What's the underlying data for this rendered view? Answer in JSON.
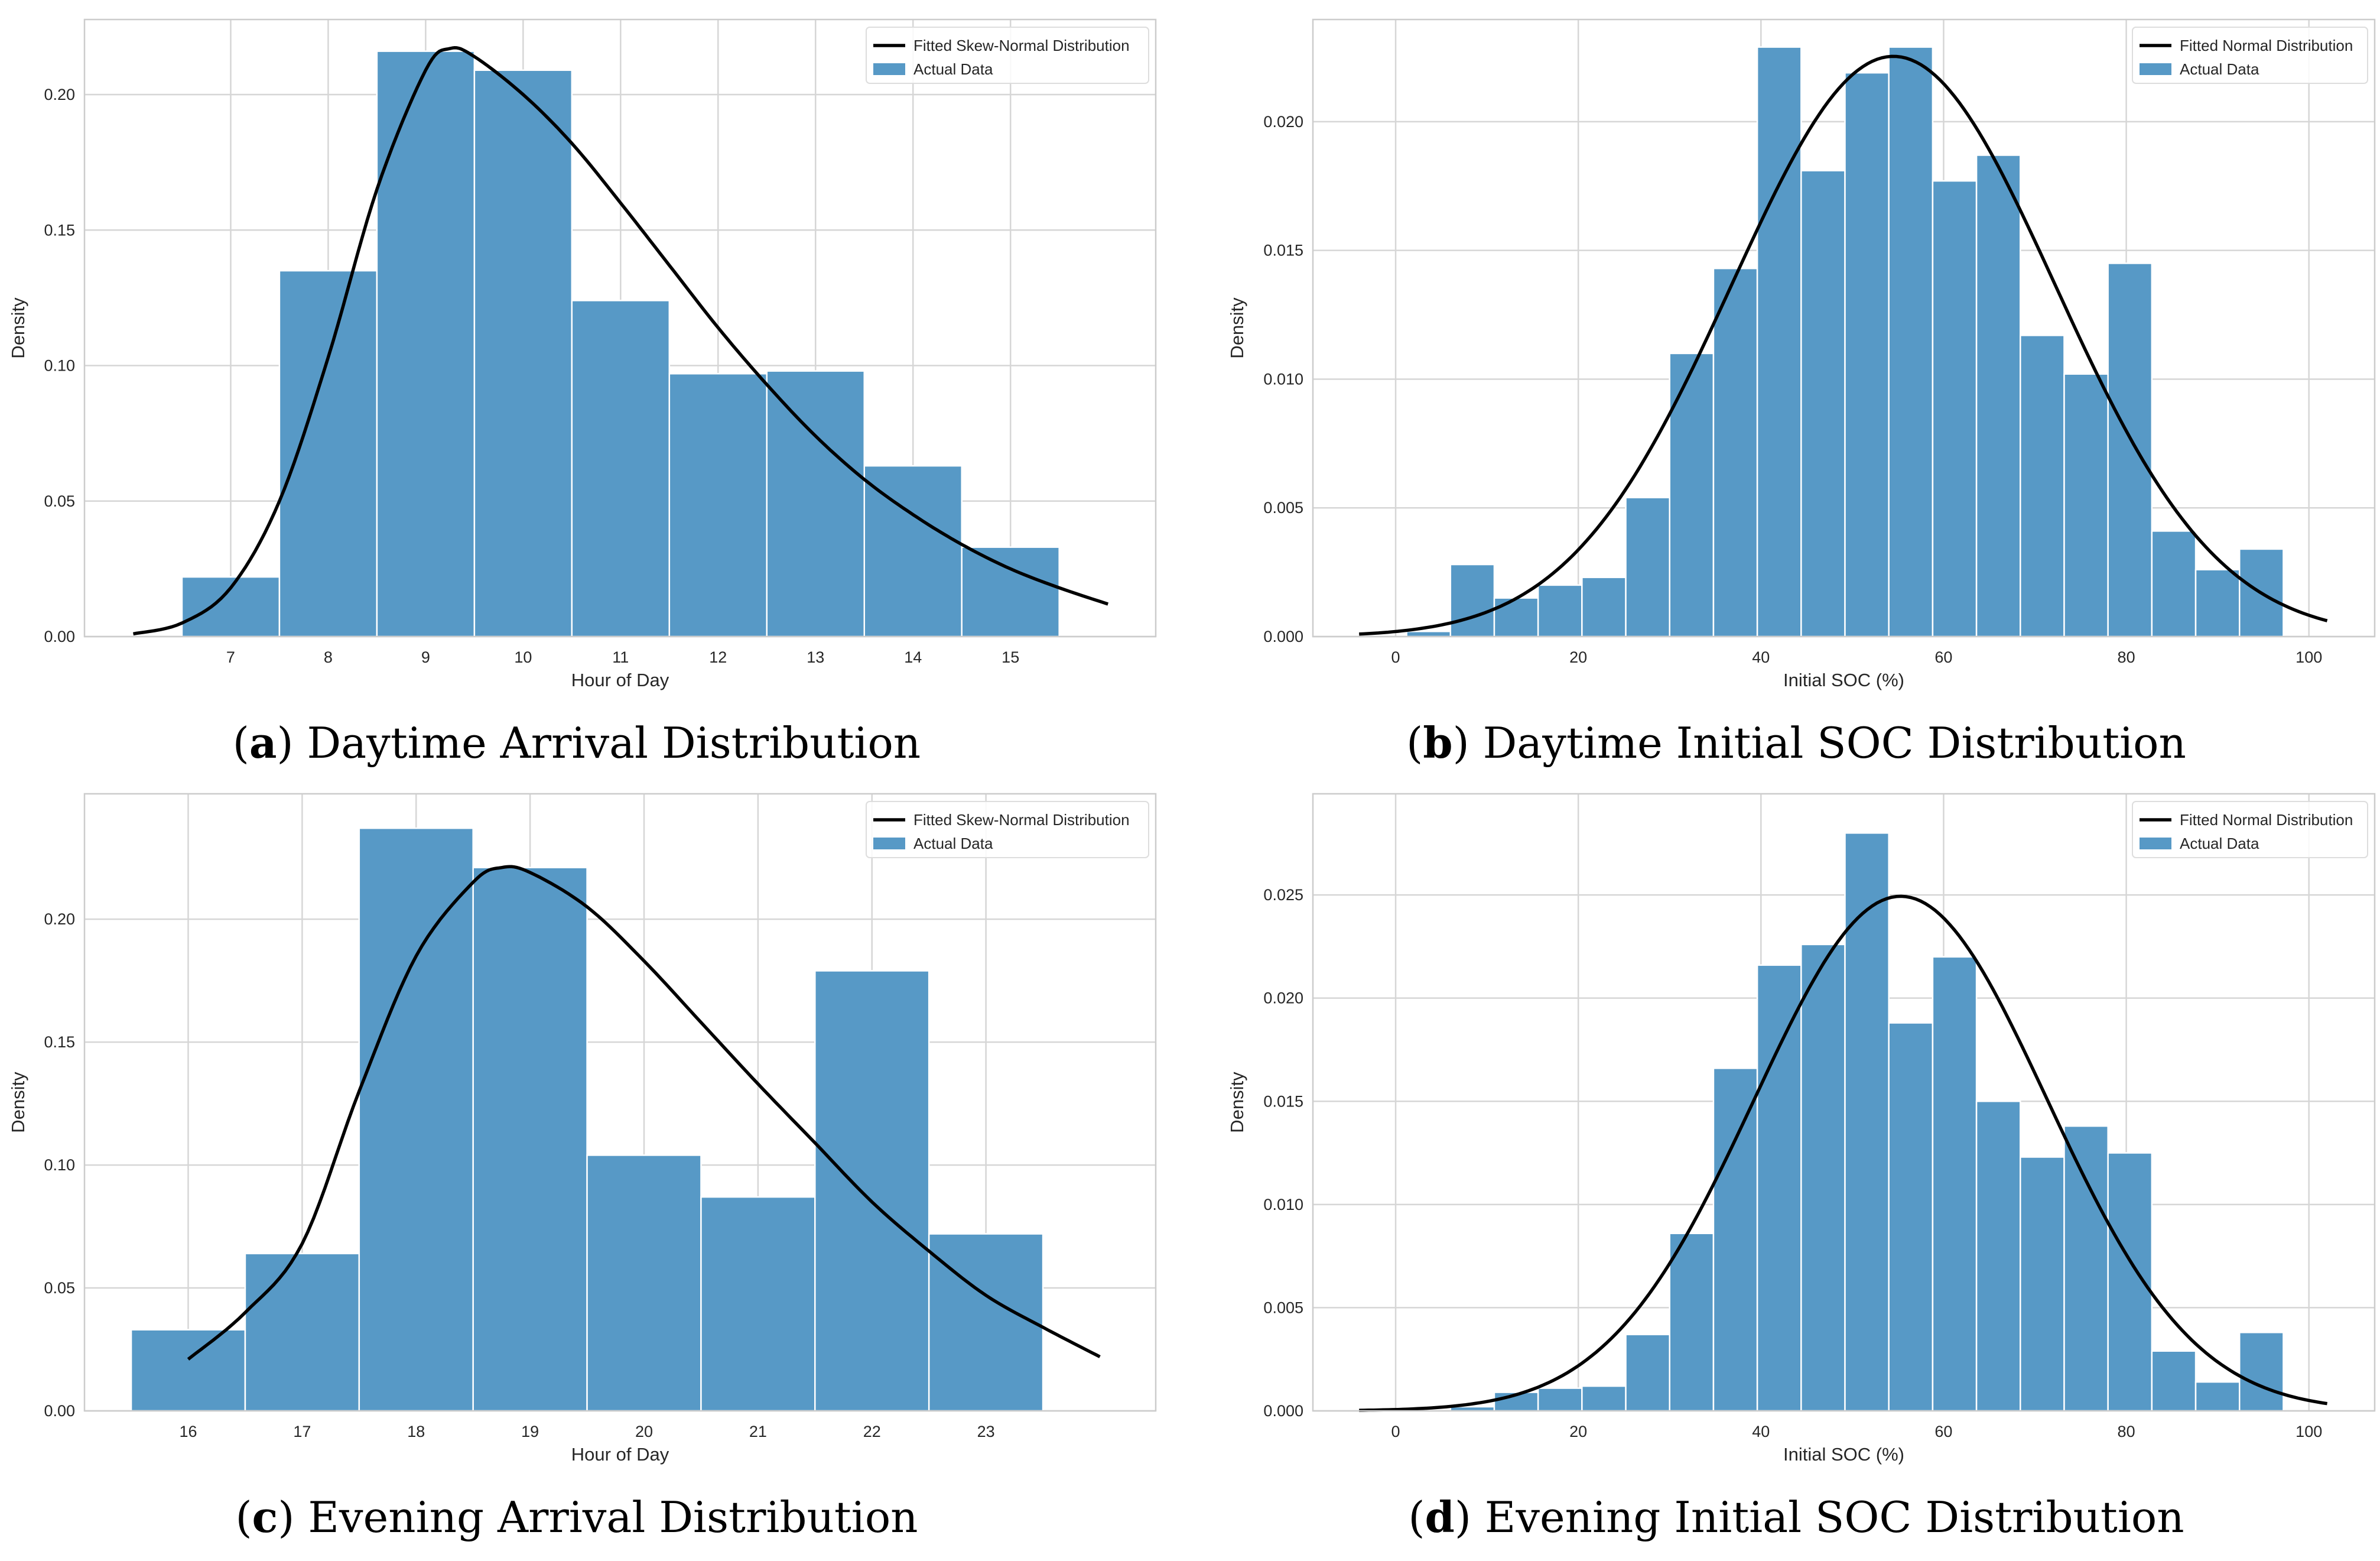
{
  "colors": {
    "bar": "#5799c6",
    "curve": "#000000",
    "grid": "#d6d6d6",
    "spine": "#cccccc"
  },
  "chart_data": [
    {
      "id": "a",
      "type": "bar",
      "caption_letter": "a",
      "caption_text": " Daytime Arrival Distribution",
      "xlabel": "Hour of Day",
      "ylabel": "Density",
      "xlim": [
        5.5,
        16.49
      ],
      "ylim": [
        0,
        0.2277
      ],
      "xticks": [
        7,
        8,
        9,
        10,
        11,
        12,
        13,
        14,
        15
      ],
      "yticks": [
        0.0,
        0.05,
        0.1,
        0.15,
        0.2
      ],
      "ytick_decimals": 2,
      "bins": {
        "start": 6.5,
        "width": 1
      },
      "values": [
        0.022,
        0.135,
        0.216,
        0.209,
        0.124,
        0.097,
        0.098,
        0.063,
        0.033
      ],
      "curve": {
        "name": "Fitted Skew-Normal Distribution",
        "kind": "points",
        "x": [
          6,
          6.5,
          7,
          7.5,
          8,
          8.5,
          9,
          9.25,
          9.5,
          10,
          10.5,
          11,
          11.5,
          12,
          12.5,
          13,
          13.5,
          14,
          14.5,
          15,
          15.5,
          16
        ],
        "y": [
          0.001,
          0.005,
          0.018,
          0.05,
          0.103,
          0.165,
          0.209,
          0.217,
          0.214,
          0.2,
          0.182,
          0.16,
          0.137,
          0.114,
          0.093,
          0.074,
          0.058,
          0.045,
          0.034,
          0.025,
          0.018,
          0.012
        ]
      },
      "legend": {
        "line": "Fitted Skew-Normal Distribution",
        "bar": "Actual Data",
        "position": "top-right"
      }
    },
    {
      "id": "b",
      "type": "bar",
      "caption_letter": "b",
      "caption_text": " Daytime Initial SOC Distribution",
      "xlabel": "Initial SOC (%)",
      "ylabel": "Density",
      "xlim": [
        -9.06,
        107.2
      ],
      "ylim": [
        0,
        0.02397
      ],
      "xticks": [
        0,
        20,
        40,
        60,
        80,
        100
      ],
      "yticks": [
        0.0,
        0.005,
        0.01,
        0.015,
        0.02
      ],
      "ytick_decimals": 3,
      "bins": {
        "start": 1.2,
        "width": 4.8
      },
      "values": [
        0.0002,
        0.0028,
        0.0015,
        0.002,
        0.0023,
        0.0054,
        0.011,
        0.0143,
        0.0229,
        0.0181,
        0.0219,
        0.0229,
        0.0177,
        0.0187,
        0.0117,
        0.0102,
        0.0145,
        0.0041,
        0.0026,
        0.0034
      ],
      "curve": {
        "name": "Fitted Normal Distribution",
        "kind": "normal",
        "mean": 54.5,
        "std": 17.7,
        "range": [
          -4,
          102
        ]
      },
      "legend": {
        "line": "Fitted Normal Distribution",
        "bar": "Actual Data",
        "position": "top-right"
      }
    },
    {
      "id": "c",
      "type": "bar",
      "caption_letter": "c",
      "caption_text": " Evening Arrival Distribution",
      "xlabel": "Hour of Day",
      "ylabel": "Density",
      "xlim": [
        15.09,
        24.49
      ],
      "ylim": [
        0,
        0.251
      ],
      "xticks": [
        16,
        17,
        18,
        19,
        20,
        21,
        22,
        23
      ],
      "yticks": [
        0.0,
        0.05,
        0.1,
        0.15,
        0.2
      ],
      "ytick_decimals": 2,
      "bins": {
        "start": 15.5,
        "width": 1
      },
      "values": [
        0.033,
        0.064,
        0.237,
        0.221,
        0.104,
        0.087,
        0.179,
        0.072
      ],
      "curve": {
        "name": "Fitted Skew-Normal Distribution",
        "kind": "points",
        "x": [
          16,
          16.5,
          17,
          17.5,
          18,
          18.5,
          18.75,
          19,
          19.5,
          20,
          20.5,
          21,
          21.5,
          22,
          22.5,
          23,
          23.5,
          24
        ],
        "y": [
          0.021,
          0.04,
          0.068,
          0.13,
          0.185,
          0.215,
          0.221,
          0.219,
          0.205,
          0.183,
          0.158,
          0.133,
          0.109,
          0.085,
          0.065,
          0.047,
          0.034,
          0.022
        ]
      },
      "legend": {
        "line": "Fitted Skew-Normal Distribution",
        "bar": "Actual Data",
        "position": "top-right"
      }
    },
    {
      "id": "d",
      "type": "bar",
      "caption_letter": "d",
      "caption_text": " Evening Initial SOC Distribution",
      "xlabel": "Initial SOC (%)",
      "ylabel": "Density",
      "xlim": [
        -9.06,
        107.2
      ],
      "ylim": [
        0,
        0.0299
      ],
      "xticks": [
        0,
        20,
        40,
        60,
        80,
        100
      ],
      "yticks": [
        0.0,
        0.005,
        0.01,
        0.015,
        0.02,
        0.025
      ],
      "ytick_decimals": 3,
      "bins": {
        "start": 1.2,
        "width": 4.8
      },
      "values": [
        0,
        0.0002,
        0.0009,
        0.0011,
        0.0012,
        0.0037,
        0.0086,
        0.0166,
        0.0216,
        0.0226,
        0.028,
        0.0188,
        0.022,
        0.015,
        0.0123,
        0.0138,
        0.0125,
        0.0029,
        0.0014,
        0.0038
      ],
      "curve": {
        "name": "Fitted Normal Distribution",
        "kind": "normal",
        "mean": 55.3,
        "std": 16.0,
        "range": [
          -4,
          102
        ]
      },
      "legend": {
        "line": "Fitted Normal Distribution",
        "bar": "Actual Data",
        "position": "top-right"
      }
    }
  ]
}
